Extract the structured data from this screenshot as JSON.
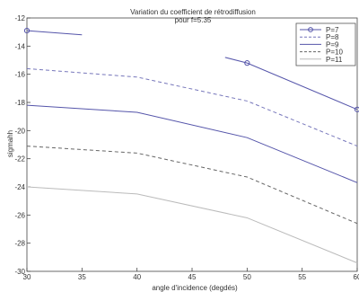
{
  "chart_data": {
    "type": "line",
    "title": "Variation du coefficient de rétrodiffusion",
    "subtitle": "pour  f=5.35",
    "xlabel": "angle d'incidence (degdés)",
    "ylabel": "sigmahh",
    "xlim": [
      30,
      60
    ],
    "ylim": [
      -30,
      -12
    ],
    "x_ticks": [
      30,
      35,
      40,
      45,
      50,
      55,
      60
    ],
    "y_ticks": [
      -12,
      -14,
      -16,
      -18,
      -20,
      -22,
      -24,
      -26,
      -28,
      -30
    ],
    "x_tick_labels": [
      "30",
      "35",
      "40",
      "45",
      "50",
      "55",
      "60"
    ],
    "y_tick_labels": [
      "-12",
      "-14",
      "-16",
      "-18",
      "-20",
      "-22",
      "-24",
      "-26",
      "-28",
      "-30"
    ],
    "grid": false,
    "legend_position": "top-right",
    "series": [
      {
        "name": "P=7",
        "segments": [
          {
            "x": [
              30,
              35
            ],
            "y": [
              -12.9,
              -13.2
            ]
          },
          {
            "x": [
              48,
              50,
              60
            ],
            "y": [
              -14.8,
              -15.2,
              -18.5
            ]
          }
        ],
        "markers_at": [
          [
            30,
            -12.9
          ],
          [
            50,
            -15.2
          ],
          [
            60,
            -18.5
          ]
        ],
        "color": "#5555aa",
        "dash": "solid",
        "marker": "circle"
      },
      {
        "name": "P=8",
        "segments": [
          {
            "x": [
              30,
              40,
              50,
              60
            ],
            "y": [
              -15.6,
              -16.2,
              -17.9,
              -21.1
            ]
          }
        ],
        "color": "#7777bb",
        "dash": "dashed"
      },
      {
        "name": "P=9",
        "segments": [
          {
            "x": [
              30,
              40,
              50,
              60
            ],
            "y": [
              -18.2,
              -18.7,
              -20.5,
              -23.7
            ]
          }
        ],
        "color": "#5555aa",
        "dash": "solid"
      },
      {
        "name": "P=10",
        "segments": [
          {
            "x": [
              30,
              40,
              50,
              60
            ],
            "y": [
              -21.1,
              -21.6,
              -23.3,
              -26.6
            ]
          }
        ],
        "color": "#666666",
        "dash": "dashed"
      },
      {
        "name": "P=11",
        "segments": [
          {
            "x": [
              30,
              40,
              50,
              60
            ],
            "y": [
              -24.0,
              -24.5,
              -26.2,
              -29.4
            ]
          }
        ],
        "color": "#bbbbbb",
        "dash": "solid"
      }
    ]
  }
}
